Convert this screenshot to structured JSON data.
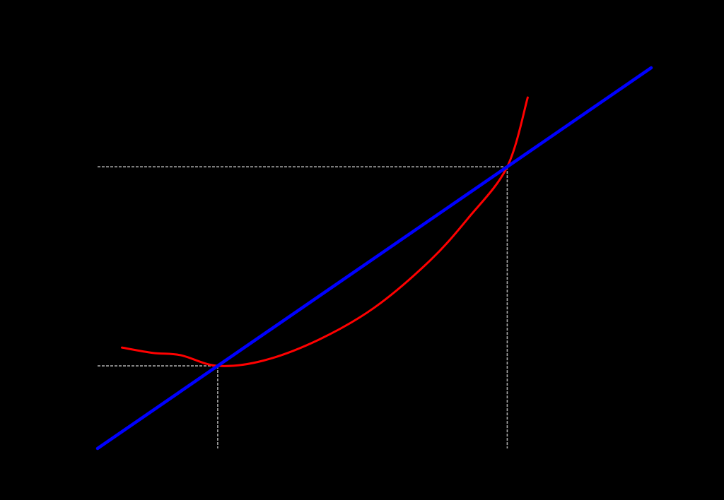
{
  "chart_data": {
    "type": "line",
    "title": "",
    "xlabel": "",
    "ylabel": "",
    "background": "#000000",
    "grid": false,
    "xlim": [
      0,
      10
    ],
    "ylim": [
      0,
      10
    ],
    "series": [
      {
        "style": "line",
        "color": "#0000ff",
        "x": [
          0,
          10
        ],
        "y": [
          0,
          10
        ]
      },
      {
        "style": "curve",
        "color": "#ff0000",
        "x": [
          0.44,
          1.0,
          1.5,
          2.17,
          3.0,
          4.0,
          5.0,
          6.0,
          6.7,
          7.4,
          7.77
        ],
        "y": [
          2.65,
          2.51,
          2.45,
          2.17,
          2.31,
          2.86,
          3.7,
          4.93,
          6.06,
          7.4,
          9.22
        ]
      }
    ],
    "reference_lines": {
      "color": "#aaaaaa",
      "points": [
        {
          "x": 2.17,
          "y": 2.17
        },
        {
          "x": 7.4,
          "y": 7.4
        }
      ]
    }
  }
}
